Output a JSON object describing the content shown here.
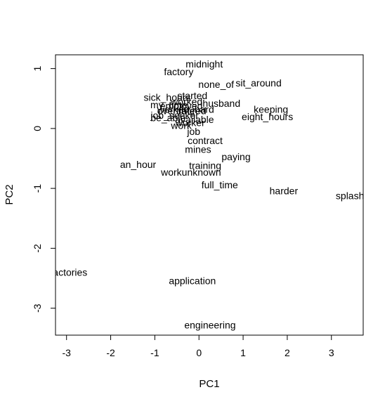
{
  "chart_data": {
    "type": "scatter",
    "xlabel": "PC1",
    "ylabel": "PC2",
    "xlim": [
      -3.25,
      3.72
    ],
    "ylim": [
      -3.45,
      1.23
    ],
    "x_ticks": [
      -3,
      -2,
      -1,
      0,
      1,
      2,
      3
    ],
    "y_ticks": [
      -3,
      -2,
      -1,
      0,
      1
    ],
    "grid": false,
    "points": [
      {
        "label": "midnight",
        "x": 0.12,
        "y": 1.08
      },
      {
        "label": "factory",
        "x": -0.46,
        "y": 0.95
      },
      {
        "label": "none_of",
        "x": 0.39,
        "y": 0.74
      },
      {
        "label": "sit_around",
        "x": 1.35,
        "y": 0.76
      },
      {
        "label": "started",
        "x": -0.15,
        "y": 0.55
      },
      {
        "label": "sick_hours",
        "x": -0.72,
        "y": 0.52
      },
      {
        "label": "worked",
        "x": -0.28,
        "y": 0.45
      },
      {
        "label": "husband",
        "x": 0.51,
        "y": 0.42
      },
      {
        "label": "my_time",
        "x": -0.68,
        "y": 0.4
      },
      {
        "label": "employed",
        "x": -0.4,
        "y": 0.38
      },
      {
        "label": "worked_hard",
        "x": -0.3,
        "y": 0.32
      },
      {
        "label": "keeping",
        "x": 1.63,
        "y": 0.32
      },
      {
        "label": "overtime",
        "x": -0.52,
        "y": 0.3
      },
      {
        "label": "retired",
        "x": -0.15,
        "y": 0.3
      },
      {
        "label": "eight_hours",
        "x": 1.55,
        "y": 0.2
      },
      {
        "label": "job_seeker",
        "x": -0.55,
        "y": 0.22
      },
      {
        "label": "be_able",
        "x": -0.7,
        "y": 0.18
      },
      {
        "label": "available",
        "x": -0.1,
        "y": 0.15
      },
      {
        "label": "worker",
        "x": -0.2,
        "y": 0.1
      },
      {
        "label": "work",
        "x": -0.4,
        "y": 0.05
      },
      {
        "label": "job",
        "x": -0.12,
        "y": -0.05
      },
      {
        "label": "contract",
        "x": 0.14,
        "y": -0.2
      },
      {
        "label": "mines",
        "x": -0.02,
        "y": -0.35
      },
      {
        "label": "paying",
        "x": 0.84,
        "y": -0.47
      },
      {
        "label": "an_hour",
        "x": -1.38,
        "y": -0.6
      },
      {
        "label": "training",
        "x": 0.14,
        "y": -0.62
      },
      {
        "label": "workunknown",
        "x": -0.18,
        "y": -0.73
      },
      {
        "label": "full_time",
        "x": 0.47,
        "y": -0.94
      },
      {
        "label": "harder",
        "x": 1.92,
        "y": -1.04
      },
      {
        "label": "splash",
        "x": 3.42,
        "y": -1.12
      },
      {
        "label": "factories",
        "x": -2.95,
        "y": -2.4
      },
      {
        "label": "application",
        "x": -0.15,
        "y": -2.54
      },
      {
        "label": "engineering",
        "x": 0.25,
        "y": -3.28
      }
    ]
  }
}
